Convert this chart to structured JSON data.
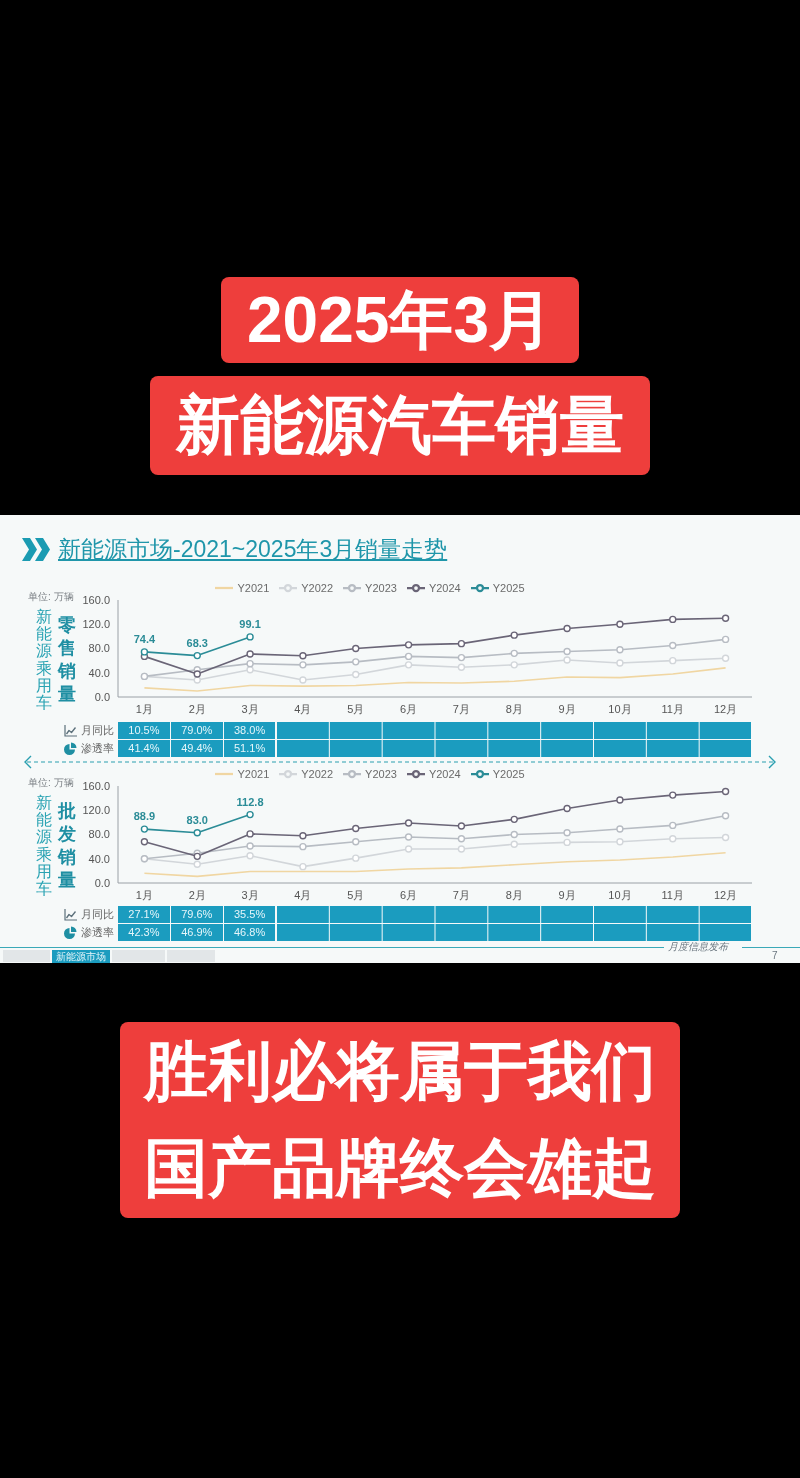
{
  "chart_data": [
    {
      "type": "other",
      "title": "2025年3月",
      "subtitle": "新能源汽车销量"
    },
    {
      "type": "line",
      "title": "新能源市场-2021~2025年3月销量走势",
      "ylabel": "零售销量",
      "annotations": [
        "单位: 万辆",
        "新能源乘用车"
      ],
      "categories": [
        "1月",
        "2月",
        "3月",
        "4月",
        "5月",
        "6月",
        "7月",
        "8月",
        "9月",
        "10月",
        "11月",
        "12月"
      ],
      "series": [
        {
          "name": "Y2021",
          "color": "#f0d6a2",
          "marker": "none",
          "values": [
            15,
            10,
            19,
            18,
            19,
            24,
            23,
            26,
            33,
            32,
            38,
            48
          ]
        },
        {
          "name": "Y2022",
          "color": "#d2d6da",
          "values": [
            34,
            28,
            45,
            28,
            37,
            53,
            49,
            53,
            61,
            56,
            60,
            64
          ]
        },
        {
          "name": "Y2023",
          "color": "#b7bcc3",
          "values": [
            34,
            45,
            55,
            53,
            58,
            67,
            65,
            72,
            75,
            78,
            85,
            95
          ]
        },
        {
          "name": "Y2024",
          "color": "#6a6577",
          "values": [
            67,
            38,
            71,
            68,
            80,
            86,
            88,
            102,
            113,
            120,
            128,
            130
          ]
        },
        {
          "name": "Y2025",
          "color": "#2b8c97",
          "values": [
            74.4,
            68.3,
            99.1,
            null,
            null,
            null,
            null,
            null,
            null,
            null,
            null,
            null
          ],
          "value_labels": [
            "74.4",
            "68.3",
            "99.1",
            null,
            null,
            null,
            null,
            null,
            null,
            null,
            null,
            null
          ]
        }
      ],
      "ylim": [
        0,
        160
      ],
      "yticks": [
        {
          "value": 0,
          "label": "0.0"
        },
        {
          "value": 40,
          "label": "40.0"
        },
        {
          "value": 80,
          "label": "80.0"
        },
        {
          "value": 120,
          "label": "120.0"
        },
        {
          "value": 160,
          "label": "160.0"
        }
      ],
      "legend": "top",
      "marker": "circle",
      "line_style": "solid"
    },
    {
      "type": "other",
      "y_categories": [
        "月同比",
        "渗透率"
      ],
      "cell_labels": [
        [
          "10.5%",
          "79.0%",
          "38.0%",
          null,
          null,
          null,
          null,
          null,
          null,
          null,
          null,
          null
        ],
        [
          "41.4%",
          "49.4%",
          "51.1%",
          null,
          null,
          null,
          null,
          null,
          null,
          null,
          null,
          null
        ]
      ],
      "color": "#1b9cbf"
    },
    {
      "type": "line",
      "ylabel": "批发销量",
      "annotations": [
        "单位: 万辆",
        "新能源乘用车"
      ],
      "categories": [
        "1月",
        "2月",
        "3月",
        "4月",
        "5月",
        "6月",
        "7月",
        "8月",
        "9月",
        "10月",
        "11月",
        "12月"
      ],
      "series": [
        {
          "name": "Y2021",
          "color": "#f0d6a2",
          "marker": "none",
          "values": [
            16,
            11,
            19,
            19,
            19,
            23,
            25,
            30,
            35,
            38,
            43,
            50
          ]
        },
        {
          "name": "Y2022",
          "color": "#d2d6da",
          "values": [
            40,
            31,
            45,
            27,
            41,
            56,
            56,
            64,
            67,
            68,
            73,
            75
          ]
        },
        {
          "name": "Y2023",
          "color": "#b7bcc3",
          "values": [
            40,
            49,
            61,
            60,
            68,
            76,
            73,
            80,
            83,
            89,
            95,
            111
          ]
        },
        {
          "name": "Y2024",
          "color": "#6a6577",
          "values": [
            68,
            44,
            81,
            78,
            90,
            99,
            94,
            105,
            123,
            137,
            145,
            151
          ]
        },
        {
          "name": "Y2025",
          "color": "#2b8c97",
          "values": [
            88.9,
            83.0,
            112.8,
            null,
            null,
            null,
            null,
            null,
            null,
            null,
            null,
            null
          ],
          "value_labels": [
            "88.9",
            "83.0",
            "112.8",
            null,
            null,
            null,
            null,
            null,
            null,
            null,
            null,
            null
          ]
        }
      ],
      "ylim": [
        0,
        160
      ],
      "yticks": [
        {
          "value": 0,
          "label": "0.0"
        },
        {
          "value": 40,
          "label": "40.0"
        },
        {
          "value": 80,
          "label": "80.0"
        },
        {
          "value": 120,
          "label": "120.0"
        },
        {
          "value": 160,
          "label": "160.0"
        }
      ],
      "legend": "top",
      "marker": "circle",
      "line_style": "solid"
    },
    {
      "type": "other",
      "y_categories": [
        "月同比",
        "渗透率"
      ],
      "cell_labels": [
        [
          "27.1%",
          "79.6%",
          "35.5%",
          null,
          null,
          null,
          null,
          null,
          null,
          null,
          null,
          null
        ],
        [
          "42.3%",
          "46.9%",
          "46.8%",
          null,
          null,
          null,
          null,
          null,
          null,
          null,
          null,
          null
        ]
      ],
      "color": "#1b9cbf"
    },
    {
      "type": "other",
      "annotations": [
        "新能源市场",
        "月度信息发布",
        "7"
      ]
    },
    {
      "type": "other",
      "annotations": [
        "胜利必将属于我们",
        "国产品牌终会雄起"
      ]
    }
  ]
}
